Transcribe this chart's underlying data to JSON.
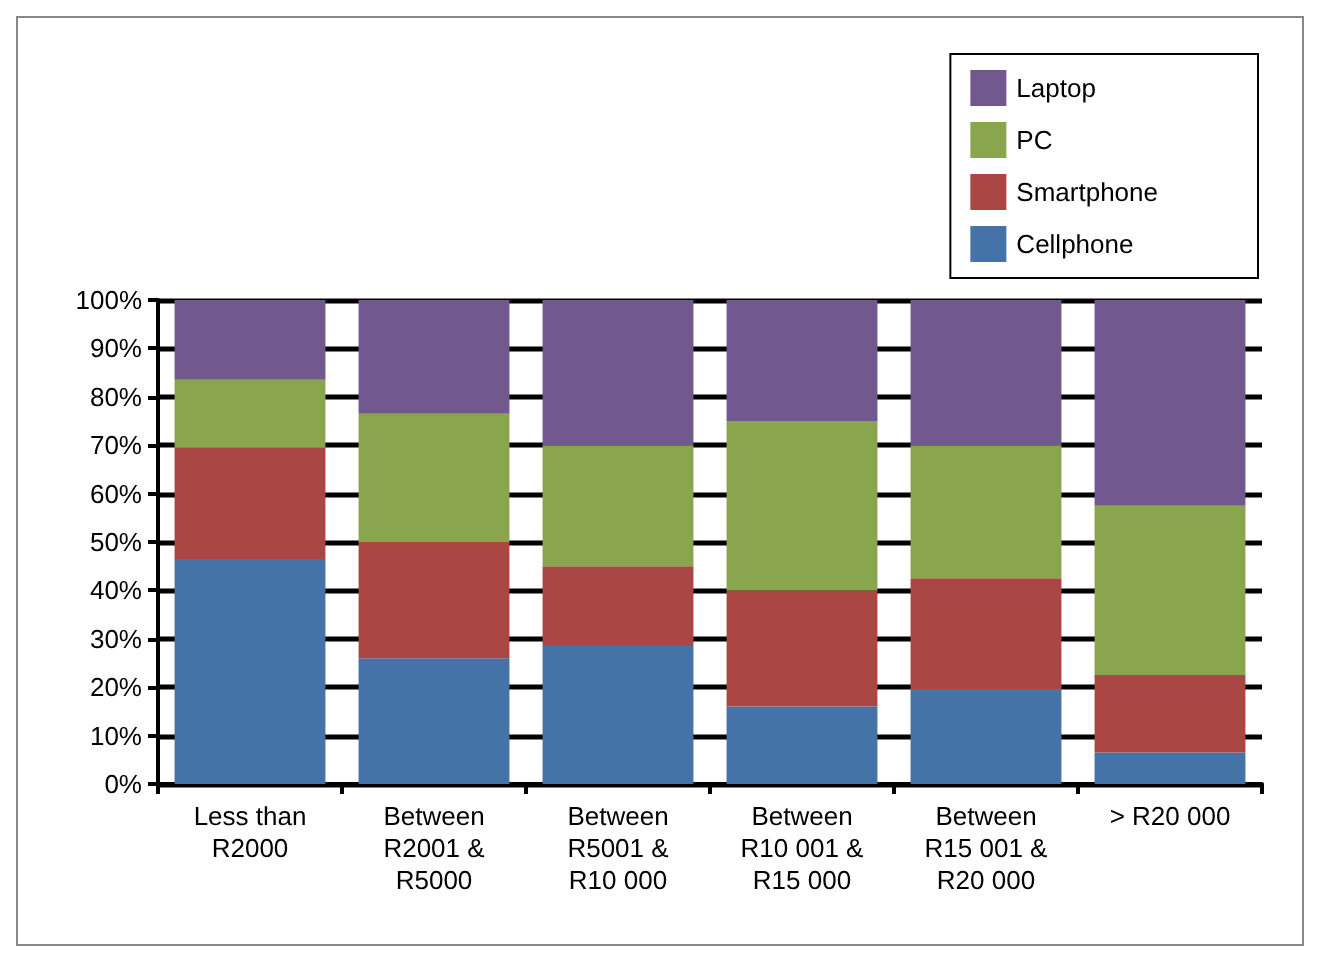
{
  "chart_data": {
    "type": "bar",
    "stacked": true,
    "categories": [
      "Less than\nR2000",
      "Between\nR2001 &\nR5000",
      "Between\nR5001 &\nR10 000",
      "Between\nR10 001 &\nR15 000",
      "Between\nR15 001 &\nR20 000",
      "> R20 000"
    ],
    "series": [
      {
        "name": "Cellphone",
        "color": "#4572a7",
        "values": [
          46.5,
          26,
          28.5,
          16,
          19.5,
          6.5
        ]
      },
      {
        "name": "Smartphone",
        "color": "#aa4643",
        "values": [
          23,
          24,
          16.5,
          24,
          23,
          16
        ]
      },
      {
        "name": "PC",
        "color": "#89a54e",
        "values": [
          14,
          26.5,
          25,
          35,
          27.5,
          35
        ]
      },
      {
        "name": "Laptop",
        "color": "#71588f",
        "values": [
          16.5,
          23.5,
          30,
          25,
          30,
          42.5
        ]
      }
    ],
    "ylim": [
      0,
      100
    ],
    "yticks": [
      {
        "value": 0,
        "label": "0%"
      },
      {
        "value": 10,
        "label": "10%"
      },
      {
        "value": 20,
        "label": "20%"
      },
      {
        "value": 30,
        "label": "30%"
      },
      {
        "value": 40,
        "label": "40%"
      },
      {
        "value": 50,
        "label": "50%"
      },
      {
        "value": 60,
        "label": "60%"
      },
      {
        "value": 70,
        "label": "70%"
      },
      {
        "value": 80,
        "label": "80%"
      },
      {
        "value": 90,
        "label": "90%"
      },
      {
        "value": 100,
        "label": "100%"
      }
    ],
    "grid": "y",
    "legend": "top right"
  }
}
